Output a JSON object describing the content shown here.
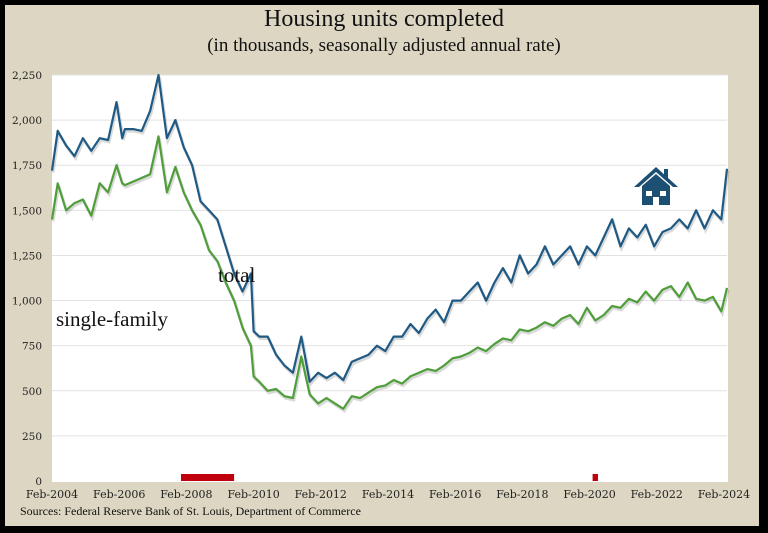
{
  "chart_data": {
    "type": "line",
    "title": "Housing units completed",
    "subtitle": "(in thousands, seasonally adjusted annual rate)",
    "xlabel": "",
    "ylabel": "",
    "ylim": [
      0,
      2250
    ],
    "yticks": [
      "0",
      "250",
      "500",
      "750",
      "1,000",
      "1,250",
      "1,500",
      "1,750",
      "2,000",
      "2,250"
    ],
    "ytick_values": [
      0,
      250,
      500,
      750,
      1000,
      1250,
      1500,
      1750,
      2000,
      2250
    ],
    "xticks": [
      "Feb-2004",
      "Feb-2006",
      "Feb-2008",
      "Feb-2010",
      "Feb-2012",
      "Feb-2014",
      "Feb-2016",
      "Feb-2018",
      "Feb-2020",
      "Feb-2022",
      "Feb-2024"
    ],
    "xlim": [
      2004.08,
      2024.17
    ],
    "grid": true,
    "x": [
      2004.08,
      2004.25,
      2004.5,
      2004.75,
      2005.0,
      2005.25,
      2005.5,
      2005.75,
      2006.0,
      2006.17,
      2006.25,
      2006.5,
      2006.75,
      2007.0,
      2007.25,
      2007.5,
      2007.75,
      2008.0,
      2008.25,
      2008.5,
      2008.75,
      2009.0,
      2009.25,
      2009.5,
      2009.75,
      2010.0,
      2010.08,
      2010.25,
      2010.5,
      2010.75,
      2011.0,
      2011.25,
      2011.5,
      2011.75,
      2012.0,
      2012.25,
      2012.5,
      2012.75,
      2013.0,
      2013.25,
      2013.5,
      2013.75,
      2014.0,
      2014.25,
      2014.5,
      2014.75,
      2015.0,
      2015.25,
      2015.5,
      2015.75,
      2016.0,
      2016.25,
      2016.5,
      2016.75,
      2017.0,
      2017.25,
      2017.5,
      2017.75,
      2018.0,
      2018.25,
      2018.5,
      2018.75,
      2019.0,
      2019.25,
      2019.5,
      2019.75,
      2020.0,
      2020.25,
      2020.5,
      2020.75,
      2021.0,
      2021.25,
      2021.5,
      2021.75,
      2022.0,
      2022.25,
      2022.5,
      2022.75,
      2023.0,
      2023.25,
      2023.5,
      2023.75,
      2024.0,
      2024.17
    ],
    "series": [
      {
        "name": "total",
        "color": "#1f5a84",
        "values": [
          1720,
          1940,
          1860,
          1800,
          1900,
          1830,
          1900,
          1890,
          2100,
          1900,
          1950,
          1950,
          1940,
          2050,
          2250,
          1900,
          2000,
          1850,
          1750,
          1550,
          1500,
          1450,
          1300,
          1150,
          1050,
          1150,
          830,
          800,
          800,
          700,
          640,
          600,
          800,
          550,
          600,
          570,
          600,
          560,
          660,
          680,
          700,
          750,
          720,
          800,
          800,
          870,
          820,
          900,
          950,
          880,
          1000,
          1000,
          1050,
          1100,
          1000,
          1100,
          1180,
          1100,
          1250,
          1150,
          1200,
          1300,
          1200,
          1250,
          1300,
          1200,
          1300,
          1250,
          1350,
          1450,
          1300,
          1400,
          1350,
          1420,
          1300,
          1380,
          1400,
          1450,
          1400,
          1500,
          1400,
          1500,
          1450,
          1730
        ]
      },
      {
        "name": "single-family",
        "color": "#4f9e3a",
        "values": [
          1450,
          1650,
          1500,
          1540,
          1560,
          1470,
          1650,
          1600,
          1750,
          1650,
          1640,
          1660,
          1680,
          1700,
          1910,
          1600,
          1740,
          1600,
          1500,
          1420,
          1280,
          1220,
          1100,
          1000,
          850,
          750,
          580,
          550,
          500,
          510,
          470,
          460,
          690,
          480,
          430,
          460,
          430,
          400,
          470,
          460,
          490,
          520,
          530,
          560,
          540,
          580,
          600,
          620,
          610,
          640,
          680,
          690,
          710,
          740,
          720,
          760,
          790,
          780,
          840,
          830,
          850,
          880,
          860,
          900,
          920,
          870,
          960,
          890,
          920,
          970,
          960,
          1010,
          990,
          1050,
          1000,
          1060,
          1080,
          1020,
          1100,
          1010,
          1000,
          1020,
          940,
          1070
        ]
      }
    ],
    "annotations": {
      "total_label": "total",
      "single_family_label": "single-family",
      "house_icon": "house-icon"
    },
    "recessions": [
      {
        "start": 2007.92,
        "end": 2009.5
      },
      {
        "start": 2020.17,
        "end": 2020.33
      }
    ],
    "recession_color": "#c0000c",
    "source": "Sources: Federal Reserve Bank of St. Louis, Department of Commerce"
  }
}
